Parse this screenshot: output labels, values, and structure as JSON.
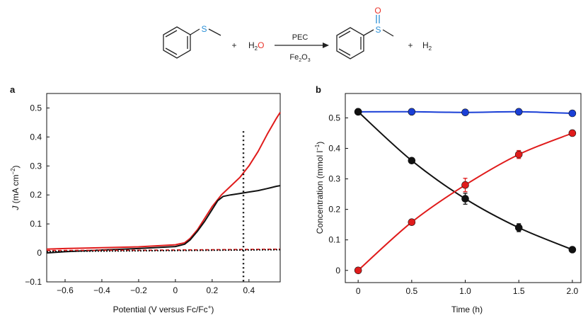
{
  "scheme": {
    "reactant_s": "S",
    "plus1": "+",
    "water_h": "H",
    "water_sub": "2",
    "water_o": "O",
    "arrow_top": "PEC",
    "arrow_bottom_fe": "Fe",
    "arrow_bottom_sub1": "2",
    "arrow_bottom_o": "O",
    "arrow_bottom_sub2": "3",
    "product_s": "S",
    "product_o": "O",
    "plus2": "+",
    "h2_h": "H",
    "h2_sub": "2",
    "colors": {
      "sulfur": "#2a8fd6",
      "oxygen": "#e8332a",
      "bond": "#222222"
    }
  },
  "chart_data": [
    {
      "panel_label": "a",
      "type": "line",
      "xlabel_main": "Potential (V versus Fc/Fc",
      "xlabel_sup": "+",
      "xlabel_end": ")",
      "ylabel_j": "J",
      "ylabel_unit": "(mA cm",
      "ylabel_sup": "−2",
      "ylabel_end": ")",
      "xlim": [
        -0.7,
        0.57
      ],
      "ylim": [
        -0.1,
        0.55
      ],
      "xticks": [
        -0.6,
        -0.4,
        -0.2,
        0,
        0.2,
        0.4
      ],
      "xtick_labels": [
        "−0.6",
        "−0.4",
        "−0.2",
        "0",
        "0.2",
        "0.4"
      ],
      "yticks": [
        -0.1,
        0,
        0.1,
        0.2,
        0.3,
        0.4,
        0.5
      ],
      "ytick_labels": [
        "−0.1",
        "0",
        "0.1",
        "0.2",
        "0.3",
        "0.4",
        "0.5"
      ],
      "vline_x": 0.37,
      "series": [
        {
          "color": "#e01b1b",
          "style": "solid",
          "x": [
            -0.7,
            -0.6,
            -0.4,
            -0.2,
            0.0,
            0.05,
            0.08,
            0.12,
            0.16,
            0.2,
            0.25,
            0.3,
            0.35,
            0.4,
            0.45,
            0.5,
            0.55,
            0.57
          ],
          "y": [
            0.013,
            0.015,
            0.018,
            0.021,
            0.028,
            0.035,
            0.05,
            0.08,
            0.12,
            0.16,
            0.2,
            0.23,
            0.26,
            0.3,
            0.35,
            0.41,
            0.465,
            0.485
          ]
        },
        {
          "color": "#111111",
          "style": "solid",
          "x": [
            -0.7,
            -0.6,
            -0.4,
            -0.2,
            0.0,
            0.05,
            0.08,
            0.12,
            0.16,
            0.2,
            0.23,
            0.26,
            0.3,
            0.35,
            0.4,
            0.45,
            0.5,
            0.55,
            0.57
          ],
          "y": [
            0.0,
            0.004,
            0.01,
            0.015,
            0.022,
            0.03,
            0.045,
            0.075,
            0.11,
            0.15,
            0.18,
            0.195,
            0.2,
            0.205,
            0.21,
            0.215,
            0.222,
            0.23,
            0.232
          ]
        },
        {
          "color": "#e01b1b",
          "style": "dashed",
          "x": [
            -0.7,
            -0.4,
            -0.2,
            0.0,
            0.2,
            0.4,
            0.57
          ],
          "y": [
            0.008,
            0.009,
            0.009,
            0.01,
            0.011,
            0.012,
            0.013
          ]
        },
        {
          "color": "#111111",
          "style": "dotted",
          "x": [
            -0.7,
            -0.4,
            -0.2,
            0.0,
            0.2,
            0.4,
            0.57
          ],
          "y": [
            0.005,
            0.006,
            0.007,
            0.008,
            0.009,
            0.01,
            0.011
          ]
        }
      ]
    },
    {
      "panel_label": "b",
      "type": "line",
      "xlabel": "Time (h)",
      "ylabel_main": "Concentration (mmol l",
      "ylabel_sup": "−1",
      "ylabel_end": ")",
      "xlim": [
        -0.12,
        2.08
      ],
      "ylim": [
        -0.04,
        0.58
      ],
      "xticks": [
        0,
        0.5,
        1.0,
        1.5,
        2.0
      ],
      "xtick_labels": [
        "0",
        "0.5",
        "1.0",
        "1.5",
        "2.0"
      ],
      "yticks": [
        0,
        0.1,
        0.2,
        0.3,
        0.4,
        0.5
      ],
      "ytick_labels": [
        "0",
        "0.1",
        "0.2",
        "0.3",
        "0.4",
        "0.5"
      ],
      "series": [
        {
          "color": "#1a3fd6",
          "x": [
            0,
            0.5,
            1.0,
            1.5,
            2.0
          ],
          "y": [
            0.52,
            0.52,
            0.518,
            0.52,
            0.515
          ],
          "err": [
            0.005,
            0.005,
            0.005,
            0.005,
            0.005
          ]
        },
        {
          "color": "#111111",
          "x": [
            0,
            0.5,
            1.0,
            1.5,
            2.0
          ],
          "y": [
            0.52,
            0.36,
            0.235,
            0.14,
            0.068
          ],
          "err": [
            0.005,
            0.008,
            0.018,
            0.013,
            0.005
          ]
        },
        {
          "color": "#e01b1b",
          "x": [
            0,
            0.5,
            1.0,
            1.5,
            2.0
          ],
          "y": [
            0.0,
            0.158,
            0.28,
            0.38,
            0.45
          ],
          "err": [
            0.003,
            0.006,
            0.022,
            0.013,
            0.006
          ]
        }
      ]
    }
  ]
}
